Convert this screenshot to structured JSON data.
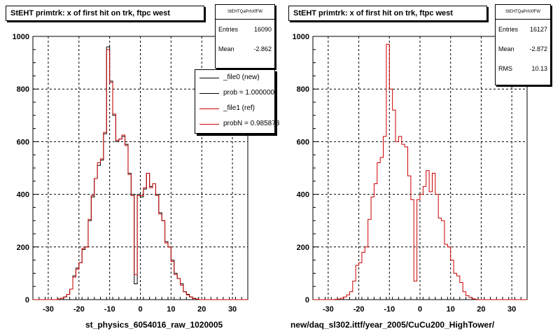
{
  "colors": {
    "ref": "#cc0000",
    "new": "#000000",
    "grid": "#000000"
  },
  "panels": [
    {
      "title": "StEHT primtrk: x of first hit on trk, ftpc west",
      "stats_name": "StEHTQaPrhXfFW",
      "stats": [
        {
          "label": "Entries",
          "value": "16090"
        },
        {
          "label": "Mean",
          "value": "-2.862"
        }
      ],
      "legend": [
        {
          "label": "_file0 (new)",
          "color": "#000000"
        },
        {
          "label": "prob = 1.000000",
          "color": "#000000"
        },
        {
          "label": "_file1 (ref)",
          "color": "#cc0000"
        },
        {
          "label": "probN = 0.985878",
          "color": "#cc0000"
        }
      ],
      "xlabel": "st_physics_6054016_raw_1020005"
    },
    {
      "title": "StEHT primtrk: x of first hit on trk, ftpc west",
      "stats_name": "StEHTQaPrhXfFW",
      "stats": [
        {
          "label": "Entries",
          "value": "16127"
        },
        {
          "label": "Mean",
          "value": "-2.872"
        },
        {
          "label": "RMS",
          "value": "10.13"
        }
      ],
      "xlabel": "new/daq_sl302.ittf/year_2005/CuCu200_HighTower/"
    }
  ],
  "chart_data": [
    {
      "type": "step-histogram",
      "title": "StEHT primtrk: x of first hit on trk, ftpc west",
      "xlabel": "st_physics_6054016_raw_1020005",
      "ylabel": "",
      "xlim": [
        -35,
        35
      ],
      "ylim": [
        0,
        1000
      ],
      "x_ticks": [
        -30,
        -20,
        -10,
        0,
        10,
        20,
        30
      ],
      "y_ticks": [
        0,
        200,
        400,
        600,
        800,
        1000
      ],
      "grid": true,
      "legend_placement": "top-right",
      "bin_edges_start": -35,
      "bin_width": 1,
      "series": [
        {
          "name": "_file0 (new)",
          "color": "#000000",
          "values": [
            0,
            0,
            0,
            0,
            0,
            0,
            0,
            0,
            2,
            5,
            10,
            20,
            40,
            90,
            120,
            140,
            190,
            200,
            300,
            390,
            460,
            510,
            530,
            630,
            960,
            830,
            700,
            600,
            610,
            620,
            590,
            480,
            400,
            60,
            400,
            390,
            420,
            480,
            430,
            440,
            400,
            330,
            300,
            220,
            200,
            150,
            100,
            80,
            60,
            30,
            20,
            10,
            5,
            2,
            0,
            0,
            0,
            0,
            0,
            0,
            0,
            0,
            0,
            0,
            0,
            0,
            0,
            0,
            0,
            0
          ]
        },
        {
          "name": "_file1 (ref)",
          "color": "#cc0000",
          "values": [
            0,
            0,
            0,
            0,
            0,
            0,
            0,
            0,
            2,
            5,
            10,
            20,
            40,
            85,
            115,
            140,
            195,
            200,
            305,
            395,
            460,
            520,
            535,
            635,
            950,
            825,
            705,
            605,
            610,
            625,
            585,
            475,
            395,
            95,
            395,
            395,
            425,
            480,
            425,
            440,
            395,
            325,
            300,
            215,
            200,
            145,
            95,
            80,
            55,
            30,
            18,
            10,
            4,
            2,
            0,
            0,
            0,
            0,
            0,
            0,
            0,
            0,
            0,
            0,
            0,
            0,
            0,
            0,
            0,
            0
          ]
        }
      ]
    },
    {
      "type": "step-histogram",
      "title": "StEHT primtrk: x of first hit on trk, ftpc west",
      "xlabel": "new/daq_sl302.ittf/year_2005/CuCu200_HighTower/",
      "ylabel": "",
      "xlim": [
        -35,
        35
      ],
      "ylim": [
        0,
        1000
      ],
      "x_ticks": [
        -30,
        -20,
        -10,
        0,
        10,
        20,
        30
      ],
      "y_ticks": [
        0,
        200,
        400,
        600,
        800,
        1000
      ],
      "grid": true,
      "bin_edges_start": -35,
      "bin_width": 1,
      "series": [
        {
          "color": "#cc0000",
          "values": [
            0,
            0,
            0,
            0,
            0,
            0,
            0,
            1,
            2,
            5,
            10,
            18,
            30,
            70,
            130,
            140,
            180,
            200,
            305,
            390,
            440,
            520,
            540,
            620,
            970,
            800,
            720,
            600,
            620,
            590,
            580,
            470,
            380,
            70,
            380,
            400,
            430,
            490,
            410,
            480,
            400,
            310,
            300,
            210,
            200,
            150,
            100,
            90,
            65,
            30,
            15,
            8,
            3,
            1,
            0,
            0,
            0,
            0,
            0,
            0,
            0,
            0,
            0,
            0,
            0,
            0,
            0,
            0,
            0,
            0
          ]
        }
      ]
    }
  ]
}
